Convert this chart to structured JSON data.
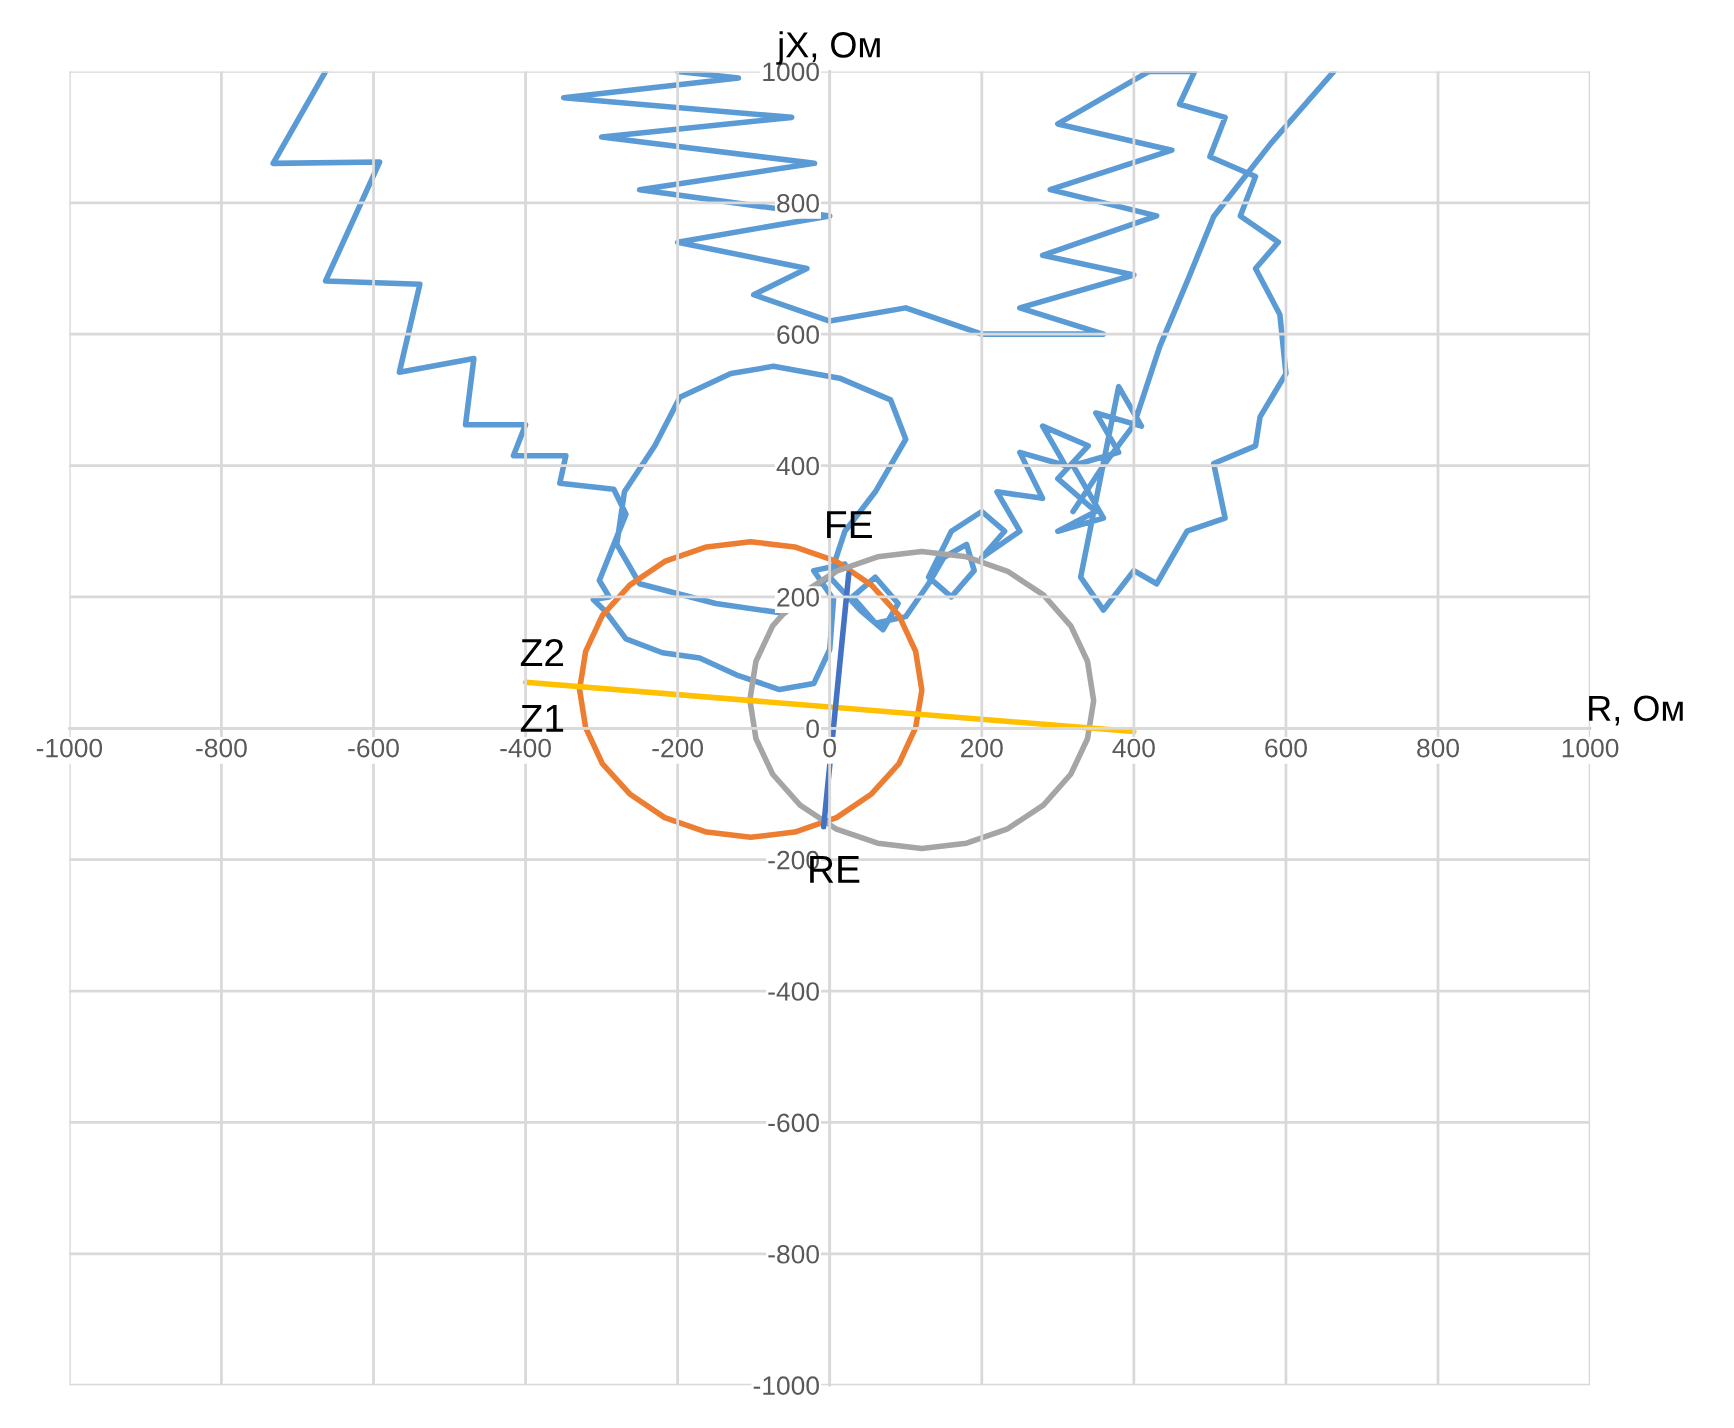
{
  "chart_data": {
    "type": "line",
    "xlabel": "R, Ом",
    "ylabel": "jX, Ом",
    "xlim": [
      -1000,
      1000
    ],
    "ylim": [
      -1000,
      1000
    ],
    "xticks": [
      -1000,
      -800,
      -600,
      -400,
      -200,
      0,
      200,
      400,
      600,
      800,
      1000
    ],
    "yticks": [
      -1000,
      -800,
      -600,
      -400,
      -200,
      0,
      200,
      400,
      600,
      800,
      1000
    ],
    "grid": true,
    "annotations": [
      {
        "text": "FE",
        "x": 25,
        "y": 235
      },
      {
        "text": "RE",
        "x": -8,
        "y": -150
      },
      "Z2",
      "Z1"
    ],
    "series": [
      {
        "color": "#5b9bd5",
        "x": [
          -663,
          -732,
          -592,
          -663,
          -539,
          -566,
          -468,
          -479,
          -400,
          -416,
          -347,
          -355,
          -284,
          -268,
          -303,
          -290,
          -311,
          -295,
          -268,
          -220,
          -171,
          -120,
          -66,
          -21,
          0,
          5,
          -21,
          20,
          -60,
          -150,
          -250,
          -280,
          -270,
          -230,
          -197,
          -130,
          -74,
          13,
          80,
          100,
          60,
          20,
          0,
          40,
          70,
          90,
          60,
          30,
          60,
          100,
          130,
          150,
          180,
          190,
          160,
          130,
          160,
          200,
          230,
          200,
          250,
          220,
          280,
          250,
          310,
          280,
          340,
          300,
          350,
          300,
          360,
          320,
          380,
          350,
          410,
          380,
          330,
          360,
          400,
          430,
          470,
          520,
          505,
          560,
          566,
          600,
          592,
          560,
          590,
          540,
          560,
          500,
          520,
          460,
          480,
          420,
          300,
          450,
          290,
          430,
          280,
          400,
          250,
          360,
          200,
          100,
          0,
          -100,
          -30,
          -200,
          0,
          -250,
          -20,
          -300,
          -50,
          -350,
          -120,
          -200
        ],
        "values": [
          1000,
          860,
          862,
          681,
          676,
          542,
          563,
          462,
          462,
          415,
          415,
          373,
          364,
          326,
          225,
          200,
          196,
          178,
          136,
          115,
          107,
          80,
          59,
          68,
          120,
          196,
          240,
          250,
          175,
          190,
          220,
          280,
          360,
          430,
          504,
          540,
          551,
          533,
          500,
          440,
          360,
          300,
          230,
          180,
          150,
          190,
          230,
          200,
          160,
          170,
          220,
          260,
          280,
          240,
          200,
          230,
          300,
          330,
          300,
          260,
          300,
          360,
          350,
          420,
          400,
          460,
          430,
          380,
          330,
          300,
          320,
          400,
          420,
          480,
          460,
          520,
          230,
          180,
          240,
          220,
          300,
          320,
          403,
          430,
          474,
          540,
          630,
          700,
          740,
          780,
          840,
          870,
          930,
          950,
          1000,
          1000,
          920,
          880,
          820,
          780,
          720,
          690,
          640,
          600,
          600,
          640,
          620,
          660,
          700,
          740,
          780,
          820,
          860,
          900,
          930,
          960,
          990,
          1000
        ]
      },
      {
        "color": "#5b9bd5",
        "x": [
          320,
          360,
          400,
          434,
          470,
          505,
          580,
          663
        ],
        "values": [
          330,
          400,
          462,
          581,
          680,
          779,
          890,
          1000
        ]
      },
      {
        "color": "#ed7d31",
        "x": [
          121,
          113,
          91,
          55,
          9,
          -46,
          -104,
          -162,
          -217,
          -263,
          -299,
          -321,
          -329,
          -321,
          -299,
          -263,
          -217,
          -162,
          -104,
          -46,
          9,
          55,
          91,
          113,
          121
        ],
        "values": [
          59,
          117,
          172,
          218,
          254,
          276,
          284,
          276,
          254,
          218,
          172,
          117,
          59,
          1,
          -54,
          -100,
          -136,
          -158,
          -166,
          -158,
          -136,
          -100,
          -54,
          1,
          57
        ]
      },
      {
        "color": "#a5a5a5",
        "x": [
          347,
          339,
          317,
          281,
          234,
          180,
          121,
          63,
          8,
          -39,
          -75,
          -97,
          -105,
          -97,
          -75,
          -39,
          8,
          63,
          121,
          180,
          234,
          281,
          317,
          339,
          347
        ],
        "values": [
          43,
          102,
          156,
          203,
          239,
          261,
          269,
          261,
          239,
          203,
          156,
          102,
          43,
          -16,
          -70,
          -117,
          -153,
          -175,
          -183,
          -175,
          -153,
          -117,
          -70,
          -16,
          41
        ]
      },
      {
        "color": "#ffc000",
        "x": [
          -400,
          400
        ],
        "values": [
          70,
          -5
        ]
      },
      {
        "color": "#4472c4",
        "x": [
          -8,
          25
        ],
        "values": [
          -150,
          235
        ]
      }
    ]
  }
}
